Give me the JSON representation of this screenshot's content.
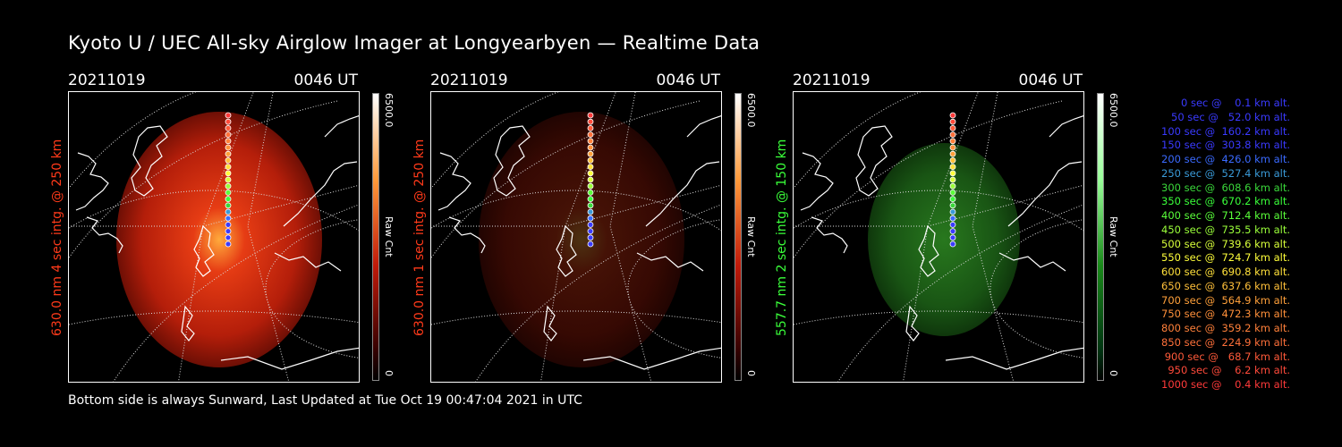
{
  "title": "Kyoto U / UEC All-sky Airglow Imager at Longyearbyen — Realtime Data",
  "footer": "Bottom side is always Sunward, Last Updated at Tue Oct 19 00:47:04 2021 in UTC",
  "panels": [
    {
      "date": "20211019",
      "time": "0046 UT",
      "side_label": "630.0 nm 4 sec intg. @ 250 km",
      "label_color": "#ff3a1a",
      "cbar_max": "6500.0",
      "cbar_unit": "Raw Cnt",
      "cbar_min": "0",
      "glow": "red",
      "brightness": 1.0
    },
    {
      "date": "20211019",
      "time": "0046 UT",
      "side_label": "630.0 nm 1 sec intg. @ 250 km",
      "label_color": "#ff3a1a",
      "cbar_max": "6500.0",
      "cbar_unit": "Raw Cnt",
      "cbar_min": "0",
      "glow": "red",
      "brightness": 0.3
    },
    {
      "date": "20211019",
      "time": "0046 UT",
      "side_label": "557.7 nm 2 sec intg. @ 150 km",
      "label_color": "#3aff3a",
      "cbar_max": "6500.0",
      "cbar_unit": "Raw Cnt",
      "cbar_min": "0",
      "glow": "green",
      "brightness": 0.3
    }
  ],
  "legend": [
    {
      "text": "0 sec @    0.1 km alt.",
      "color": "#3a3aff"
    },
    {
      "text": "50 sec @   52.0 km alt.",
      "color": "#3a3aff"
    },
    {
      "text": "100 sec @  160.2 km alt.",
      "color": "#3a3aff"
    },
    {
      "text": "150 sec @  303.8 km alt.",
      "color": "#3a3aff"
    },
    {
      "text": "200 sec @  426.0 km alt.",
      "color": "#3a6aff"
    },
    {
      "text": "250 sec @  527.4 km alt.",
      "color": "#3a9ad8"
    },
    {
      "text": "300 sec @  608.6 km alt.",
      "color": "#3ad83a"
    },
    {
      "text": "350 sec @  670.2 km alt.",
      "color": "#3aff3a"
    },
    {
      "text": "400 sec @  712.4 km alt.",
      "color": "#5aff3a"
    },
    {
      "text": "450 sec @  735.5 km alt.",
      "color": "#9aff3a"
    },
    {
      "text": "500 sec @  739.6 km alt.",
      "color": "#d8ff3a"
    },
    {
      "text": "550 sec @  724.7 km alt.",
      "color": "#ffff3a"
    },
    {
      "text": "600 sec @  690.8 km alt.",
      "color": "#ffe03a"
    },
    {
      "text": "650 sec @  637.6 km alt.",
      "color": "#ffc03a"
    },
    {
      "text": "700 sec @  564.9 km alt.",
      "color": "#ffa03a"
    },
    {
      "text": "750 sec @  472.3 km alt.",
      "color": "#ff903a"
    },
    {
      "text": "800 sec @  359.2 km alt.",
      "color": "#ff803a"
    },
    {
      "text": "850 sec @  224.9 km alt.",
      "color": "#ff703a"
    },
    {
      "text": "900 sec @   68.7 km alt.",
      "color": "#ff5a3a"
    },
    {
      "text": "950 sec @    6.2 km alt.",
      "color": "#ff4a3a"
    },
    {
      "text": "1000 sec @    0.4 km alt.",
      "color": "#ff3a3a"
    }
  ]
}
